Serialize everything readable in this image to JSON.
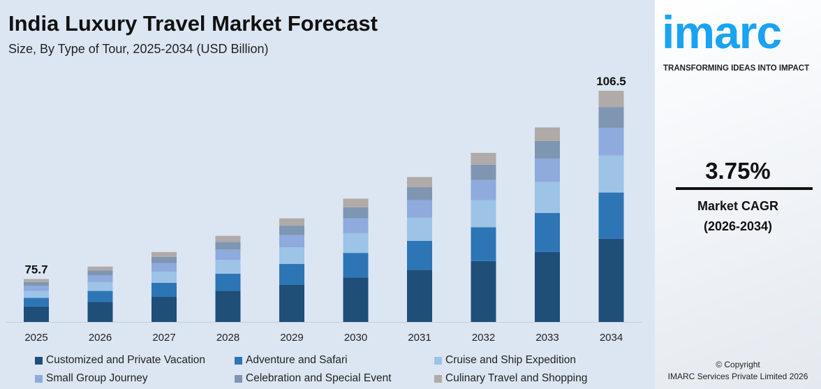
{
  "header": {
    "title": "India Luxury Travel Market Forecast",
    "subtitle": "Size, By Type of Tour, 2025-2034 (USD Billion)"
  },
  "brand": {
    "logo": "imarc",
    "tagline": "TRANSFORMING IDEAS INTO IMPACT",
    "color": "#1aa3f0"
  },
  "cagr": {
    "value": "3.75%",
    "label": "Market CAGR",
    "period": "(2026-2034)"
  },
  "copyright": {
    "line1": "© Copyright",
    "line2": "IMARC Services Private Limited 2026"
  },
  "chart_data": {
    "type": "bar",
    "stacked": true,
    "title": "India Luxury Travel Market Forecast",
    "subtitle": "Size, By Type of Tour, 2025-2034 (USD Billion)",
    "categories": [
      "2025",
      "2026",
      "2027",
      "2028",
      "2029",
      "2030",
      "2031",
      "2032",
      "2033",
      "2034"
    ],
    "totals": [
      75.7,
      78.5,
      81.5,
      84.6,
      87.7,
      91.0,
      94.4,
      98.0,
      101.6,
      106.5
    ],
    "total_labels": {
      "0": "75.7",
      "9": "106.5"
    },
    "series": [
      {
        "name": "Customized and Private Vacation",
        "color": "#1f4e79",
        "share": 0.36
      },
      {
        "name": "Adventure and Safari",
        "color": "#2e75b6",
        "share": 0.2
      },
      {
        "name": "Cruise and Ship Expedition",
        "color": "#9dc3e6",
        "share": 0.16
      },
      {
        "name": "Small Group Journey",
        "color": "#8faadc",
        "share": 0.12
      },
      {
        "name": "Celebration and Special Event",
        "color": "#7f96b2",
        "share": 0.09
      },
      {
        "name": "Culinary Travel and Shopping",
        "color": "#b0aaa8",
        "share": 0.07
      }
    ],
    "legend": "bottom",
    "grid": false
  }
}
